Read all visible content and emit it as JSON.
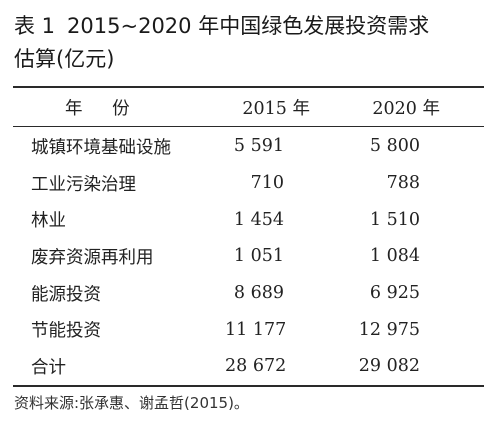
{
  "caption": {
    "table_number": "表 1",
    "title_line1": "2015~2020 年中国绿色发展投资需求",
    "title_line2": "估算(亿元)"
  },
  "table": {
    "header": {
      "row_label": "年 份",
      "col_a": "2015 年",
      "col_b": "2020 年"
    },
    "rows": [
      {
        "name": "城镇环境基础设施",
        "y2015": "5 591",
        "y2020": "5 800"
      },
      {
        "name": "工业污染治理",
        "y2015": "710",
        "y2020": "788"
      },
      {
        "name": "林业",
        "y2015": "1 454",
        "y2020": "1 510"
      },
      {
        "name": "废弃资源再利用",
        "y2015": "1 051",
        "y2020": "1 084"
      },
      {
        "name": "能源投资",
        "y2015": "8 689",
        "y2020": "6 925"
      },
      {
        "name": "节能投资",
        "y2015": "11 177",
        "y2020": "12 975"
      },
      {
        "name": "合计",
        "y2015": "28 672",
        "y2020": "29 082"
      }
    ]
  },
  "source_note": "资料来源:张承惠、谢孟哲(2015)。"
}
